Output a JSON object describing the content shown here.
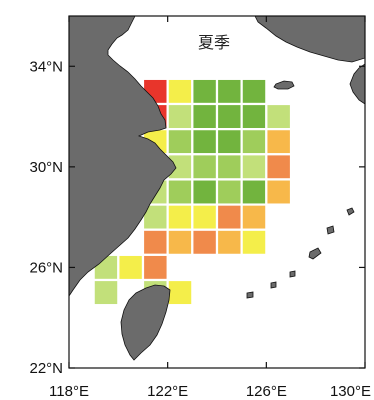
{
  "title": "夏季",
  "colors": {
    "sea": "#ffffff",
    "land": "#6b6b6b",
    "coast": "#111111",
    "frame": "#111111",
    "cell_outline": "#ffffff",
    "palette": {
      "darkred": "#b5121b",
      "red": "#e8352b",
      "orange": "#f08a4b",
      "lightorange": "#f7b84a",
      "yellow": "#f4ee4a",
      "lightyellow": "#e6f07a",
      "lightgreen": "#c2e07a",
      "green": "#9fcd5b",
      "darkgreen": "#72b43e"
    }
  },
  "axes": {
    "lon_range": [
      118,
      130
    ],
    "lat_range": [
      22,
      36
    ],
    "x_ticks": [
      {
        "value": 118,
        "label": "118°E"
      },
      {
        "value": 122,
        "label": "122°E"
      },
      {
        "value": 126,
        "label": "126°E"
      },
      {
        "value": 130,
        "label": "130°E"
      }
    ],
    "y_ticks": [
      {
        "value": 34,
        "label": "34°N"
      },
      {
        "value": 30,
        "label": "30°N"
      },
      {
        "value": 26,
        "label": "26°N"
      },
      {
        "value": 22,
        "label": "22°N"
      }
    ]
  },
  "grid": {
    "cell_size_deg": 1,
    "cells": [
      {
        "lon": 121.5,
        "lat": 33.0,
        "c": "red"
      },
      {
        "lon": 122.5,
        "lat": 33.0,
        "c": "yellow"
      },
      {
        "lon": 123.5,
        "lat": 33.0,
        "c": "darkgreen"
      },
      {
        "lon": 124.5,
        "lat": 33.0,
        "c": "darkgreen"
      },
      {
        "lon": 125.5,
        "lat": 33.0,
        "c": "darkgreen"
      },
      {
        "lon": 121.5,
        "lat": 32.0,
        "c": "red"
      },
      {
        "lon": 122.5,
        "lat": 32.0,
        "c": "lightgreen"
      },
      {
        "lon": 123.5,
        "lat": 32.0,
        "c": "darkgreen"
      },
      {
        "lon": 124.5,
        "lat": 32.0,
        "c": "darkgreen"
      },
      {
        "lon": 125.5,
        "lat": 32.0,
        "c": "darkgreen"
      },
      {
        "lon": 126.5,
        "lat": 32.0,
        "c": "lightgreen"
      },
      {
        "lon": 121.5,
        "lat": 31.0,
        "c": "yellow"
      },
      {
        "lon": 122.5,
        "lat": 31.0,
        "c": "green"
      },
      {
        "lon": 123.5,
        "lat": 31.0,
        "c": "darkgreen"
      },
      {
        "lon": 124.5,
        "lat": 31.0,
        "c": "darkgreen"
      },
      {
        "lon": 125.5,
        "lat": 31.0,
        "c": "green"
      },
      {
        "lon": 126.5,
        "lat": 31.0,
        "c": "lightorange"
      },
      {
        "lon": 121.5,
        "lat": 30.0,
        "c": "darkred"
      },
      {
        "lon": 122.5,
        "lat": 30.0,
        "c": "lightgreen"
      },
      {
        "lon": 123.5,
        "lat": 30.0,
        "c": "green"
      },
      {
        "lon": 124.5,
        "lat": 30.0,
        "c": "green"
      },
      {
        "lon": 125.5,
        "lat": 30.0,
        "c": "lightgreen"
      },
      {
        "lon": 126.5,
        "lat": 30.0,
        "c": "orange"
      },
      {
        "lon": 121.5,
        "lat": 29.0,
        "c": "lightgreen"
      },
      {
        "lon": 122.5,
        "lat": 29.0,
        "c": "green"
      },
      {
        "lon": 123.5,
        "lat": 29.0,
        "c": "darkgreen"
      },
      {
        "lon": 124.5,
        "lat": 29.0,
        "c": "green"
      },
      {
        "lon": 125.5,
        "lat": 29.0,
        "c": "darkgreen"
      },
      {
        "lon": 126.5,
        "lat": 29.0,
        "c": "lightorange"
      },
      {
        "lon": 121.5,
        "lat": 28.0,
        "c": "lightgreen"
      },
      {
        "lon": 122.5,
        "lat": 28.0,
        "c": "yellow"
      },
      {
        "lon": 123.5,
        "lat": 28.0,
        "c": "yellow"
      },
      {
        "lon": 124.5,
        "lat": 28.0,
        "c": "orange"
      },
      {
        "lon": 125.5,
        "lat": 28.0,
        "c": "lightorange"
      },
      {
        "lon": 121.5,
        "lat": 27.0,
        "c": "orange"
      },
      {
        "lon": 122.5,
        "lat": 27.0,
        "c": "lightorange"
      },
      {
        "lon": 123.5,
        "lat": 27.0,
        "c": "orange"
      },
      {
        "lon": 124.5,
        "lat": 27.0,
        "c": "lightorange"
      },
      {
        "lon": 125.5,
        "lat": 27.0,
        "c": "yellow"
      },
      {
        "lon": 119.5,
        "lat": 26.0,
        "c": "lightgreen"
      },
      {
        "lon": 120.5,
        "lat": 26.0,
        "c": "yellow"
      },
      {
        "lon": 121.5,
        "lat": 26.0,
        "c": "orange"
      },
      {
        "lon": 119.5,
        "lat": 25.0,
        "c": "lightgreen"
      },
      {
        "lon": 121.5,
        "lat": 25.0,
        "c": "lightgreen"
      },
      {
        "lon": 122.5,
        "lat": 25.0,
        "c": "yellow"
      }
    ]
  }
}
